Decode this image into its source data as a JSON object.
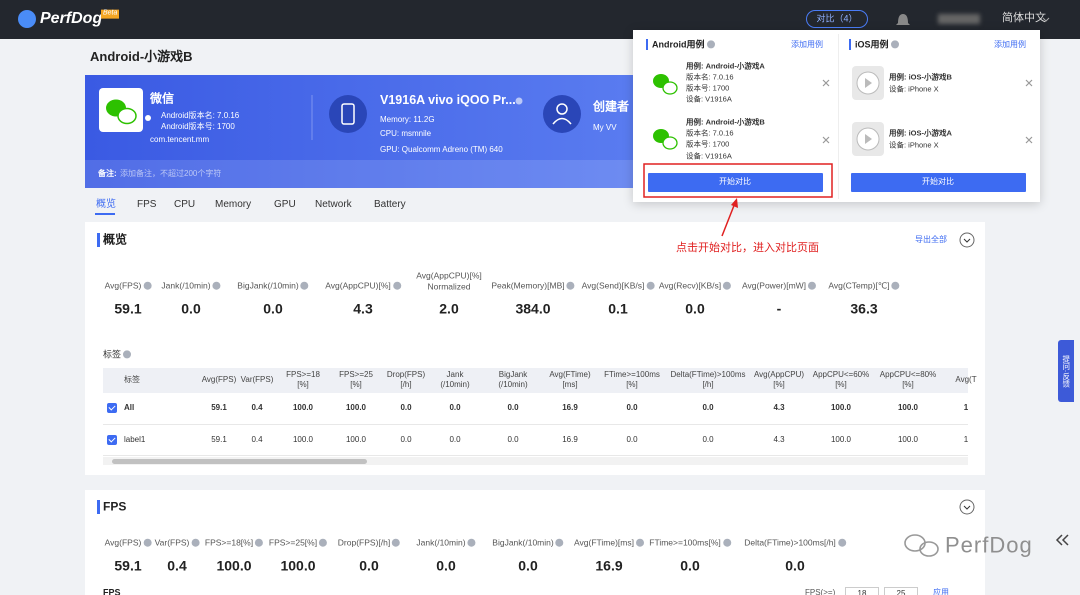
{
  "header": {
    "logo": "PerfDog",
    "badge": "Beta",
    "compare": "对比（4）",
    "language": "简体中文"
  },
  "page_title": "Android-小游戏B",
  "app": {
    "name": "微信",
    "version_name": "Android版本名: 7.0.16",
    "version_code": "Android版本号: 1700",
    "package": "com.tencent.mm"
  },
  "device": {
    "name": "V1916A vivo iQOO Pr...",
    "memory": "Memory: 11.2G",
    "cpu": "CPU: msmnile",
    "gpu": "GPU: Qualcomm Adreno (TM) 640"
  },
  "creator": {
    "label": "创建者",
    "name": "My VV"
  },
  "remark": {
    "label": "备注:",
    "placeholder": "添加备注，不超过200个字符"
  },
  "tabs": [
    "概览",
    "FPS",
    "CPU",
    "Memory",
    "GPU",
    "Network",
    "Battery"
  ],
  "overview": {
    "title": "概览",
    "export": "导出全部",
    "metrics": [
      {
        "label": "Avg(FPS)",
        "value": "59.1"
      },
      {
        "label": "Jank(/10min)",
        "value": "0.0"
      },
      {
        "label": "BigJank(/10min)",
        "value": "0.0"
      },
      {
        "label": "Avg(AppCPU)[%]",
        "value": "4.3"
      },
      {
        "label": "Avg(AppCPU)[%]\nNormalized",
        "value": "2.0"
      },
      {
        "label": "Peak(Memory)[MB]",
        "value": "384.0"
      },
      {
        "label": "Avg(Send)[KB/s]",
        "value": "0.1"
      },
      {
        "label": "Avg(Recv)[KB/s]",
        "value": "0.0"
      },
      {
        "label": "Avg(Power)[mW]",
        "value": "-"
      },
      {
        "label": "Avg(CTemp)[℃]",
        "value": "36.3"
      }
    ],
    "tags_title": "标签",
    "table": {
      "headers": [
        "标签",
        "Avg(FPS)",
        "Var(FPS)",
        "FPS>=18\n[%]",
        "FPS>=25\n[%]",
        "Drop(FPS)\n[/h]",
        "Jank\n(/10min)",
        "BigJank\n(/10min)",
        "Avg(FTime)\n[ms]",
        "FTime>=100ms\n[%]",
        "Delta(FTime)>100ms\n[/h]",
        "Avg(AppCPU)\n[%]",
        "AppCPU<=60%\n[%]",
        "AppCPU<=80%\n[%]",
        "Avg(T"
      ],
      "rows": [
        [
          "All",
          "59.1",
          "0.4",
          "100.0",
          "100.0",
          "0.0",
          "0.0",
          "0.0",
          "16.9",
          "0.0",
          "0.0",
          "4.3",
          "100.0",
          "100.0",
          "1"
        ],
        [
          "label1",
          "59.1",
          "0.4",
          "100.0",
          "100.0",
          "0.0",
          "0.0",
          "0.0",
          "16.9",
          "0.0",
          "0.0",
          "4.3",
          "100.0",
          "100.0",
          "1"
        ]
      ]
    }
  },
  "fps": {
    "title": "FPS",
    "metrics": [
      {
        "label": "Avg(FPS)",
        "value": "59.1"
      },
      {
        "label": "Var(FPS)",
        "value": "0.4"
      },
      {
        "label": "FPS>=18[%]",
        "value": "100.0"
      },
      {
        "label": "FPS>=25[%]",
        "value": "100.0"
      },
      {
        "label": "Drop(FPS)[/h]",
        "value": "0.0"
      },
      {
        "label": "Jank(/10min)",
        "value": "0.0"
      },
      {
        "label": "BigJank(/10min)",
        "value": "0.0"
      },
      {
        "label": "Avg(FTime)[ms]",
        "value": "16.9"
      },
      {
        "label": "FTime>=100ms[%]",
        "value": "0.0"
      },
      {
        "label": "Delta(FTime)>100ms[/h]",
        "value": "0.0"
      }
    ],
    "sub_title": "FPS",
    "threshold_label": "FPS(>=)",
    "thresholds": [
      "18",
      "25"
    ],
    "apply": "应用"
  },
  "popup": {
    "android": {
      "title": "Android用例",
      "add": "添加用例",
      "button": "开始对比",
      "cases": [
        {
          "lines": [
            "用例: Android-小游戏A",
            "版本名: 7.0.16",
            "版本号: 1700",
            "设备: V1916A"
          ]
        },
        {
          "lines": [
            "用例: Android-小游戏B",
            "版本名: 7.0.16",
            "版本号: 1700",
            "设备: V1916A"
          ]
        }
      ]
    },
    "ios": {
      "title": "iOS用例",
      "add": "添加用例",
      "button": "开始对比",
      "cases": [
        {
          "lines": [
            "用例: iOS-小游戏B",
            "设备: iPhone X"
          ]
        },
        {
          "lines": [
            "用例: iOS-小游戏A",
            "设备: iPhone X"
          ]
        }
      ]
    }
  },
  "annotation": "点击开始对比，进入对比页面",
  "side_tab": "提问·反馈",
  "watermark": "PerfDog"
}
